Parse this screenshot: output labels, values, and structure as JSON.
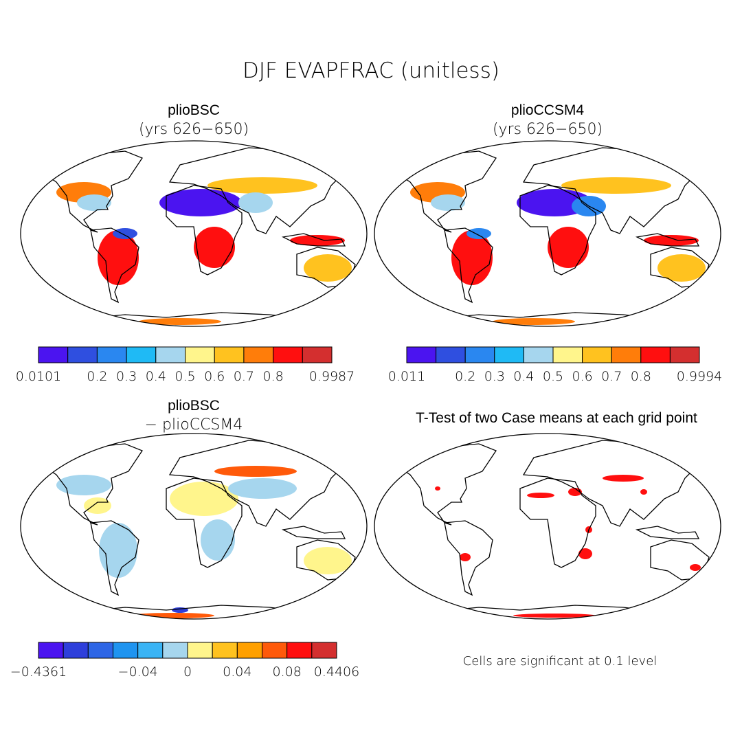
{
  "title": "DJF EVAPFRAC (unitless)",
  "panels": [
    {
      "title": "plioBSC",
      "subtitle": "(yrs 626−650)",
      "colorbar": {
        "colors": [
          "#4b14f0",
          "#2f4fe0",
          "#2a87f0",
          "#1fbaf5",
          "#a6d6ee",
          "#fff58c",
          "#ffc21f",
          "#ff7d0a",
          "#ff0f0f",
          "#d42f2f"
        ],
        "labels": [
          "0.0101",
          null,
          "0.2",
          "0.3",
          "0.4",
          "0.5",
          "0.6",
          "0.7",
          "0.8",
          null,
          "0.9987"
        ]
      }
    },
    {
      "title": "plioCCSM4",
      "subtitle": "(yrs 626−650)",
      "colorbar": {
        "colors": [
          "#4b14f0",
          "#2f4fe0",
          "#2a87f0",
          "#1fbaf5",
          "#a6d6ee",
          "#fff58c",
          "#ffc21f",
          "#ff7d0a",
          "#ff0f0f",
          "#d42f2f"
        ],
        "labels": [
          "0.011",
          null,
          "0.2",
          "0.3",
          "0.4",
          "0.5",
          "0.6",
          "0.7",
          "0.8",
          null,
          "0.9994"
        ]
      }
    },
    {
      "title": "plioBSC",
      "subtitle": "− plioCCSM4",
      "colorbar": {
        "colors": [
          "#4b14f0",
          "#2e3fdb",
          "#2e66e6",
          "#1f94f0",
          "#3ab4f5",
          "#a6d6ee",
          "#fff58c",
          "#ffc21f",
          "#ffa000",
          "#ff5a0a",
          "#ff0f0f",
          "#d42f2f"
        ],
        "labels": [
          "−0.4361",
          null,
          null,
          null,
          "−0.04",
          null,
          "0",
          null,
          "0.04",
          null,
          "0.08",
          null,
          "0.4406"
        ]
      }
    },
    {
      "title": "T-Test of two Case means at each grid point",
      "note": "Cells are significant at 0.1 level"
    }
  ]
}
